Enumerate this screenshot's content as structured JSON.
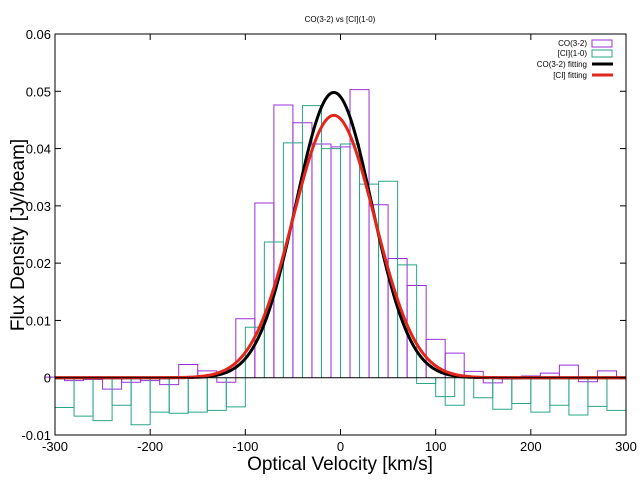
{
  "chart_data": {
    "type": "line",
    "title": "CO(3-2) vs [CI](1-0)",
    "xlabel": "Optical Velocity [km/s]",
    "ylabel": "Flux Density [Jy/beam]",
    "xlim": [
      -300,
      300
    ],
    "ylim": [
      -0.01,
      0.06
    ],
    "xticks": [
      "-300",
      "-200",
      "-100",
      "0",
      "100",
      "200",
      "300"
    ],
    "yticks": [
      "-0.01",
      "0",
      "0.01",
      "0.02",
      "0.03",
      "0.04",
      "0.05",
      "0.06"
    ],
    "grid": false,
    "legend_position": "top-right",
    "series": [
      {
        "name": "CO(3-2)",
        "style": "histogram",
        "color": "#9b30d9",
        "bin_width": 20,
        "x": [
          -300,
          -280,
          -260,
          -240,
          -220,
          -200,
          -180,
          -160,
          -140,
          -120,
          -100,
          -80,
          -60,
          -40,
          -20,
          0,
          20,
          40,
          60,
          80,
          100,
          120,
          140,
          160,
          180,
          200,
          220,
          240,
          260,
          280
        ],
        "y": [
          0.0001,
          -0.0005,
          -0.0003,
          -0.002,
          -0.0008,
          -0.0005,
          -0.0012,
          0.0023,
          0.0012,
          -0.0008,
          0.0103,
          0.0305,
          0.0476,
          0.0445,
          0.0408,
          0.0403,
          0.0503,
          0.0302,
          0.0208,
          0.0161,
          0.0067,
          0.0043,
          0.0011,
          -0.0009,
          -0.0002,
          0.0003,
          0.0008,
          0.0022,
          -0.0007,
          0.0012
        ]
      },
      {
        "name": "[CI](1-0)",
        "style": "histogram",
        "color": "#2aa58a",
        "bin_width": 20,
        "x": [
          -290,
          -270,
          -250,
          -230,
          -210,
          -190,
          -170,
          -150,
          -130,
          -110,
          -90,
          -70,
          -50,
          -30,
          -10,
          10,
          30,
          50,
          70,
          90,
          110,
          120,
          150,
          170,
          190,
          210,
          230,
          250,
          270,
          290
        ],
        "y": [
          -0.0052,
          -0.0067,
          -0.0075,
          -0.0048,
          -0.0082,
          -0.006,
          -0.0062,
          -0.006,
          -0.0057,
          -0.0051,
          0.0088,
          0.0237,
          0.041,
          0.0475,
          0.04,
          0.0408,
          0.0338,
          0.0343,
          0.0197,
          -0.001,
          -0.0033,
          -0.0048,
          -0.0035,
          -0.0055,
          -0.0045,
          -0.006,
          -0.0048,
          -0.0065,
          -0.005,
          -0.0057
        ]
      },
      {
        "name": "CO(3-2) fitting",
        "style": "gaussian",
        "color": "#000000",
        "amplitude": 0.0498,
        "center": -7,
        "sigma": 40
      },
      {
        "name": "[CI] fitting",
        "style": "gaussian",
        "color": "#e1261c",
        "amplitude": 0.0458,
        "center": -7,
        "sigma": 43
      }
    ]
  }
}
